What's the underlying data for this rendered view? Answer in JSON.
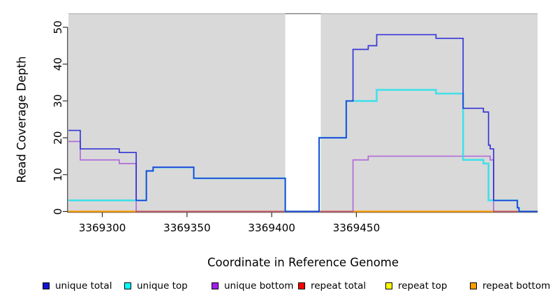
{
  "chart_data": {
    "type": "line",
    "subtype": "step-coverage",
    "title": "",
    "xlabel": "Coordinate in Reference Genome",
    "ylabel": "Read Coverage Depth",
    "xlim": [
      3369280,
      3369557
    ],
    "ylim": [
      0,
      53.8
    ],
    "x_ticks": [
      3369300,
      3369350,
      3369400,
      3369450
    ],
    "y_ticks": [
      0,
      10,
      20,
      30,
      40,
      50
    ],
    "grid": false,
    "legend_position": "bottom",
    "colors": {
      "plot_background": "#d9d9d9",
      "gap_background": "#ffffff",
      "region_top_border": "#b5b5b5",
      "gap_top_border": "#7d7d7d",
      "axis": "#2e2e2e"
    },
    "background_regions": [
      {
        "start": 3369280,
        "end": 3369408
      },
      {
        "start": 3369429,
        "end": 3369557
      }
    ],
    "gap_region": {
      "start": 3369408,
      "end": 3369429
    },
    "series": [
      {
        "name": "repeat total",
        "color": "#ff0000",
        "width": 1.4,
        "steps": [
          [
            3369280,
            0
          ]
        ]
      },
      {
        "name": "repeat top",
        "color": "#ffff00",
        "width": 1.4,
        "steps": [
          [
            3369280,
            0
          ]
        ]
      },
      {
        "name": "repeat bottom",
        "color": "#ff9d00",
        "width": 2.2,
        "steps": [
          [
            3369280,
            0
          ]
        ]
      },
      {
        "name": "unique bottom",
        "color": "rgba(150,40,220,0.62)",
        "width": 1.7,
        "steps": [
          [
            3369280,
            19
          ],
          [
            3369287,
            14
          ],
          [
            3369310,
            13
          ],
          [
            3369320,
            0
          ],
          [
            3369448,
            14
          ],
          [
            3369457,
            15
          ],
          [
            3369529,
            14
          ],
          [
            3369531,
            0
          ]
        ]
      },
      {
        "name": "unique top",
        "color": "rgba(40,225,235,0.85)",
        "width": 2.6,
        "steps": [
          [
            3369280,
            3
          ],
          [
            3369326,
            11
          ],
          [
            3369330,
            12
          ],
          [
            3369354,
            9
          ],
          [
            3369408,
            0
          ],
          [
            3369428,
            20
          ],
          [
            3369444,
            30
          ],
          [
            3369462,
            33
          ],
          [
            3369497,
            32
          ],
          [
            3369513,
            14
          ],
          [
            3369525,
            13
          ],
          [
            3369528,
            3
          ],
          [
            3369545,
            1
          ],
          [
            3369546,
            0
          ]
        ]
      },
      {
        "name": "unique total",
        "color": "rgba(45,45,215,0.95)",
        "width": 1.7,
        "steps": [
          [
            3369280,
            22
          ],
          [
            3369287,
            17
          ],
          [
            3369310,
            16
          ],
          [
            3369320,
            3
          ],
          [
            3369326,
            11
          ],
          [
            3369330,
            12
          ],
          [
            3369354,
            9
          ],
          [
            3369408,
            0
          ],
          [
            3369428,
            20
          ],
          [
            3369444,
            30
          ],
          [
            3369448,
            44
          ],
          [
            3369457,
            45
          ],
          [
            3369462,
            48
          ],
          [
            3369497,
            47
          ],
          [
            3369513,
            28
          ],
          [
            3369525,
            27
          ],
          [
            3369528,
            18
          ],
          [
            3369529,
            17
          ],
          [
            3369531,
            3
          ],
          [
            3369545,
            1
          ],
          [
            3369546,
            0
          ]
        ]
      }
    ],
    "legend": [
      {
        "label": "unique total",
        "color": "#1313d6"
      },
      {
        "label": "unique top",
        "color": "#00ffff"
      },
      {
        "label": "unique bottom",
        "color": "#a020f0"
      },
      {
        "label": "repeat total",
        "color": "#ff0000"
      },
      {
        "label": "repeat top",
        "color": "#ffff00"
      },
      {
        "label": "repeat bottom",
        "color": "#ff9d00"
      }
    ]
  }
}
